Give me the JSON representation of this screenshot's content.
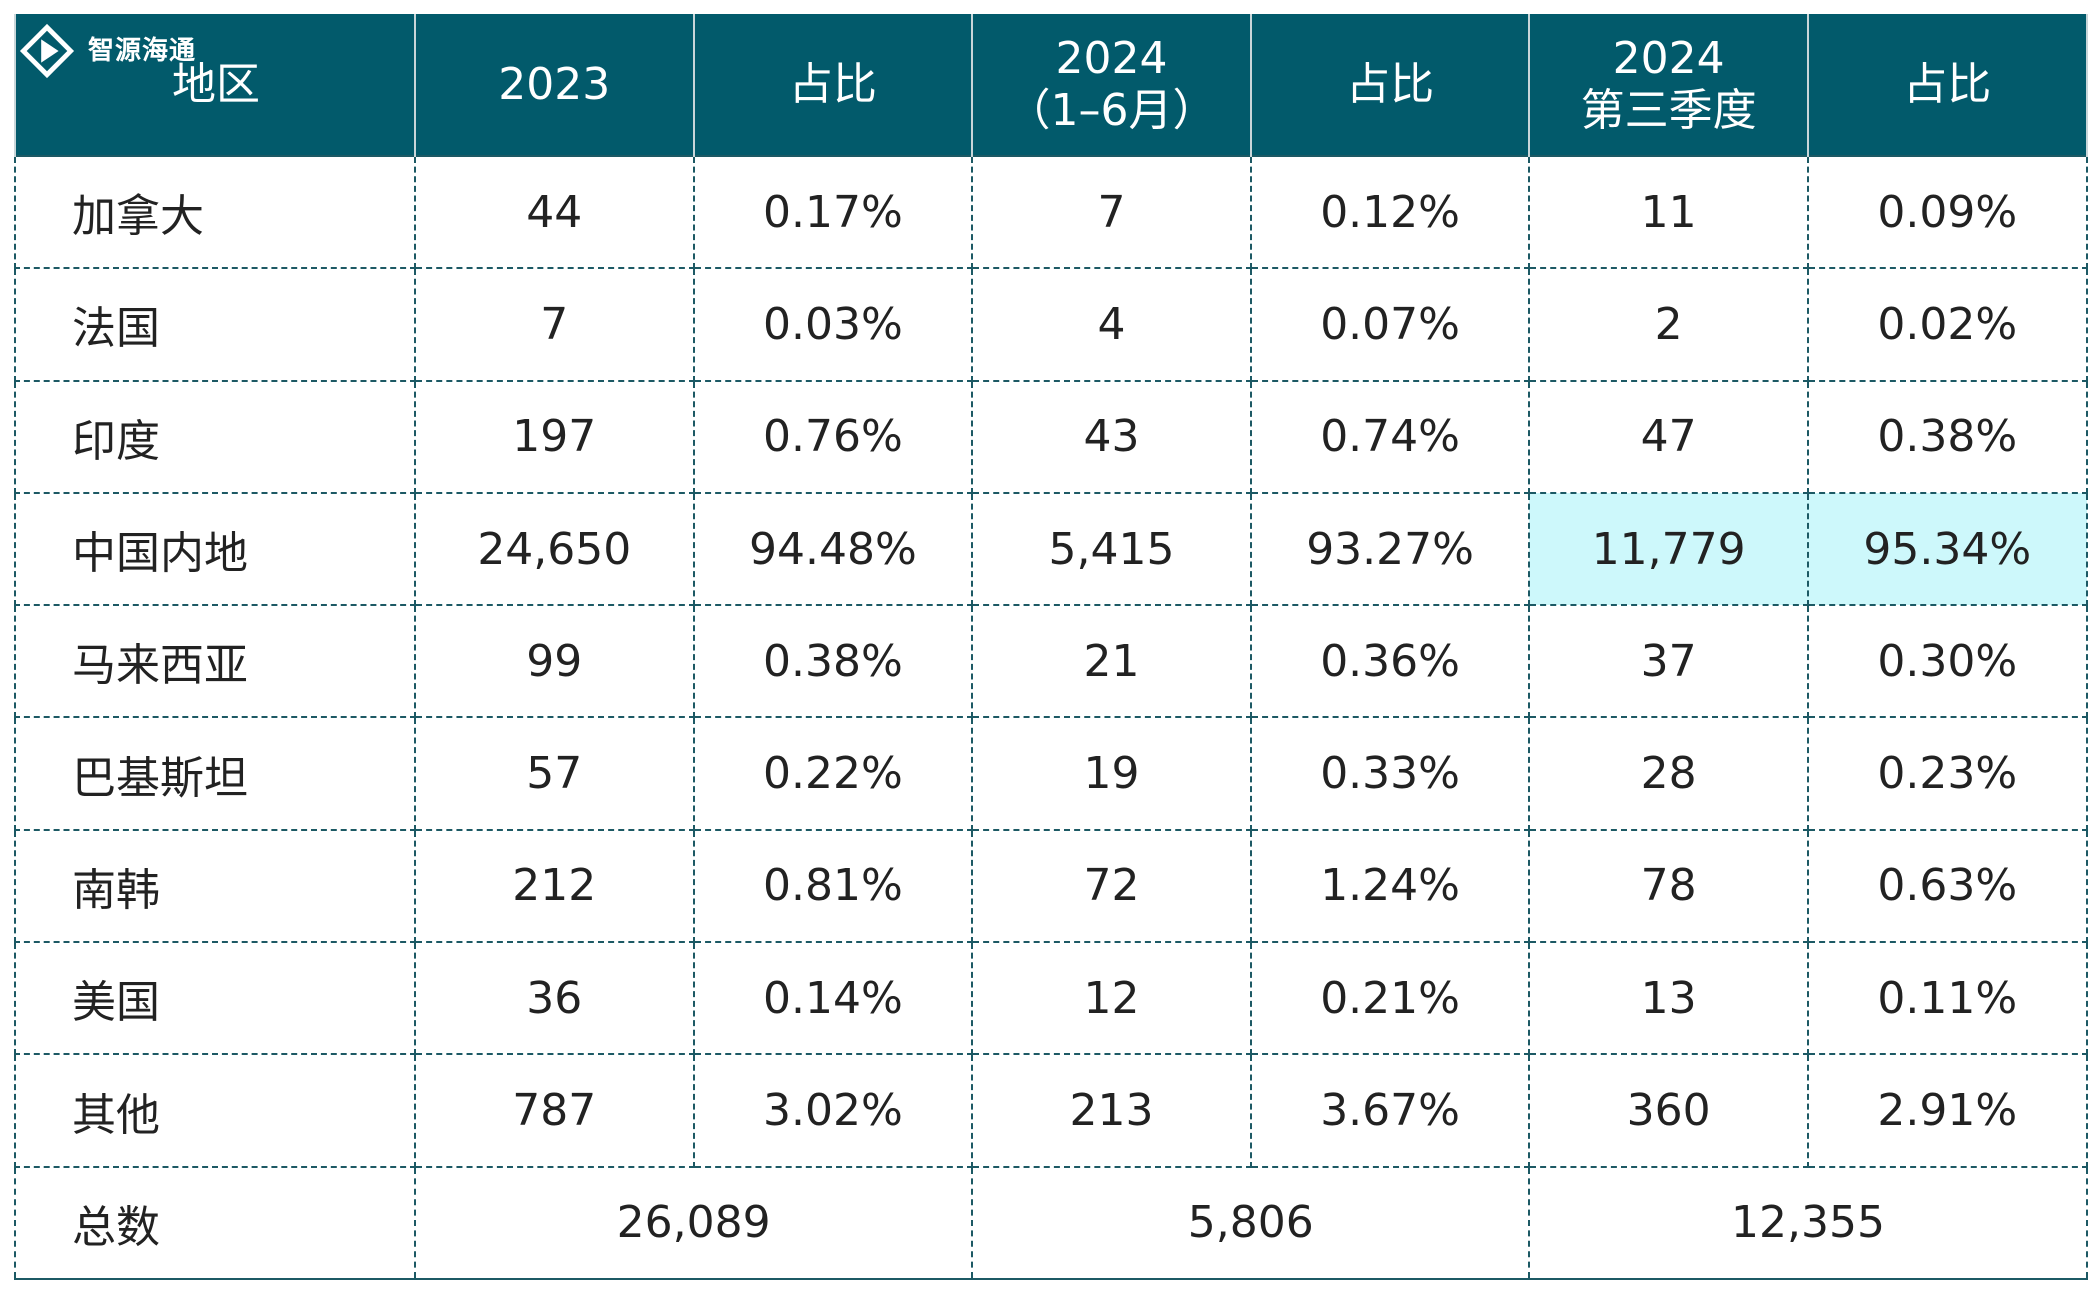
{
  "logo": {
    "text": "智源海通",
    "icon": "diamond-play-logo-icon"
  },
  "header": {
    "region": "地区",
    "col_2023": "2023",
    "share_1": "占比",
    "col_2024h1_line1": "2024",
    "col_2024h1_line2": "（1–6月）",
    "share_2": "占比",
    "col_2024q3_line1": "2024",
    "col_2024q3_line2": "第三季度",
    "share_3": "占比"
  },
  "rows": [
    {
      "region": "加拿大",
      "v2023": "44",
      "s2023": "0.17%",
      "v2024h1": "7",
      "s2024h1": "0.12%",
      "v2024q3": "11",
      "s2024q3": "0.09%"
    },
    {
      "region": "法国",
      "v2023": "7",
      "s2023": "0.03%",
      "v2024h1": "4",
      "s2024h1": "0.07%",
      "v2024q3": "2",
      "s2024q3": "0.02%"
    },
    {
      "region": "印度",
      "v2023": "197",
      "s2023": "0.76%",
      "v2024h1": "43",
      "s2024h1": "0.74%",
      "v2024q3": "47",
      "s2024q3": "0.38%"
    },
    {
      "region": "中国内地",
      "v2023": "24,650",
      "s2023": "94.48%",
      "v2024h1": "5,415",
      "s2024h1": "93.27%",
      "v2024q3": "11,779",
      "s2024q3": "95.34%"
    },
    {
      "region": "马来西亚",
      "v2023": "99",
      "s2023": "0.38%",
      "v2024h1": "21",
      "s2024h1": "0.36%",
      "v2024q3": "37",
      "s2024q3": "0.30%"
    },
    {
      "region": "巴基斯坦",
      "v2023": "57",
      "s2023": "0.22%",
      "v2024h1": "19",
      "s2024h1": "0.33%",
      "v2024q3": "28",
      "s2024q3": "0.23%"
    },
    {
      "region": "南韩",
      "v2023": "212",
      "s2023": "0.81%",
      "v2024h1": "72",
      "s2024h1": "1.24%",
      "v2024q3": "78",
      "s2024q3": "0.63%"
    },
    {
      "region": "美国",
      "v2023": "36",
      "s2023": "0.14%",
      "v2024h1": "12",
      "s2024h1": "0.21%",
      "v2024q3": "13",
      "s2024q3": "0.11%"
    },
    {
      "region": "其他",
      "v2023": "787",
      "s2023": "3.02%",
      "v2024h1": "213",
      "s2024h1": "3.67%",
      "v2024q3": "360",
      "s2024q3": "2.91%"
    }
  ],
  "total": {
    "label": "总数",
    "t2023": "26,089",
    "t2024h1": "5,806",
    "t2024q3": "12,355"
  },
  "colors": {
    "header_bg": "#025a6b",
    "header_text": "#ffffff",
    "highlight_bg": "#cdf8fb",
    "border": "#1c5964"
  }
}
